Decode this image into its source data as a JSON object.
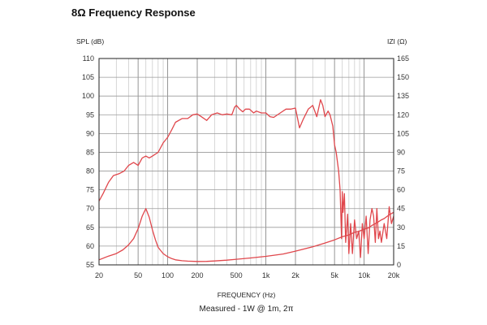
{
  "chart_data": {
    "type": "line",
    "title": "8Ω Frequency Response",
    "xlabel": "FREQUENCY (Hz)",
    "ylabel": "SPL (dB)",
    "y2label": "IZI (Ω)",
    "subtitle": "Measured - 1W @ 1m, 2π",
    "x_scale": "log",
    "xlim": [
      20,
      20000
    ],
    "ylim": [
      55,
      110
    ],
    "y2lim": [
      0,
      165
    ],
    "x_ticks": [
      20,
      50,
      100,
      200,
      500,
      1000,
      2000,
      5000,
      10000,
      20000
    ],
    "x_tick_labels": [
      "20",
      "50",
      "100",
      "200",
      "500",
      "1k",
      "2k",
      "5k",
      "10k",
      "20k"
    ],
    "y_ticks": [
      "110",
      "105",
      "100",
      "95",
      "90",
      "85",
      "80",
      "75",
      "70",
      "65",
      "60",
      "55"
    ],
    "y2_ticks": [
      "165",
      "150",
      "135",
      "120",
      "105",
      "90",
      "75",
      "60",
      "45",
      "30",
      "15",
      "0"
    ],
    "grid": true,
    "line_color": "#e0474c",
    "series": [
      {
        "axis": "left",
        "x": [
          20,
          22,
          25,
          28,
          32,
          36,
          40,
          45,
          50,
          55,
          60,
          65,
          70,
          80,
          90,
          100,
          110,
          120,
          140,
          160,
          180,
          200,
          220,
          250,
          280,
          320,
          360,
          400,
          450,
          480,
          500,
          540,
          580,
          620,
          680,
          750,
          800,
          900,
          1000,
          1100,
          1200,
          1400,
          1600,
          1800,
          2000,
          2200,
          2400,
          2700,
          3000,
          3300,
          3600,
          3800,
          4000,
          4300,
          4500,
          4800,
          5000,
          5200,
          5500,
          5700,
          5900,
          6000,
          6100,
          6300,
          6500,
          6800,
          7000,
          7300,
          7600,
          8000,
          8400,
          8800,
          9200,
          9600,
          10000,
          10500,
          11000,
          11500,
          12000,
          12500,
          13000,
          13500,
          14000,
          14500,
          15000,
          16000,
          17000,
          18000,
          19000,
          20000
        ],
        "values": [
          72,
          74,
          77,
          78.8,
          79.3,
          80,
          81.5,
          82.3,
          81.5,
          83.5,
          84,
          83.5,
          84,
          85,
          87.5,
          89,
          91,
          93,
          94,
          94,
          95,
          95.2,
          94.5,
          93.5,
          95,
          95.5,
          95,
          95.2,
          95,
          97,
          97.5,
          96.5,
          95.8,
          96.5,
          96.5,
          95.5,
          96,
          95.5,
          95.5,
          94.5,
          94.3,
          95.5,
          96.5,
          96.5,
          96.8,
          91.5,
          93.8,
          96.5,
          97.5,
          94.5,
          99,
          97.5,
          94.5,
          96,
          95,
          92,
          87,
          85,
          80,
          75,
          62,
          74.5,
          69,
          74,
          61,
          68.5,
          58,
          66,
          58,
          67,
          62,
          64,
          57,
          66,
          62,
          68,
          58,
          67,
          70,
          68,
          61,
          70,
          62,
          64,
          61,
          66,
          62,
          70.5,
          66,
          68
        ]
      },
      {
        "axis": "right",
        "x": [
          20,
          25,
          30,
          35,
          40,
          45,
          50,
          55,
          60,
          65,
          70,
          75,
          80,
          90,
          100,
          110,
          120,
          140,
          160,
          200,
          250,
          300,
          400,
          500,
          700,
          1000,
          1500,
          2000,
          3000,
          4000,
          5000,
          6000,
          7000,
          8000,
          9000,
          10000,
          11000,
          12000,
          13000,
          14000,
          15000,
          16000,
          18000,
          20000
        ],
        "values": [
          4,
          7,
          9,
          12,
          16,
          21,
          29,
          39,
          45,
          38,
          28,
          20,
          14,
          9,
          6.5,
          5,
          4,
          3.3,
          3,
          2.7,
          2.8,
          3.1,
          3.8,
          4.5,
          5.5,
          6.8,
          8.7,
          11,
          14.5,
          17.5,
          20,
          22.5,
          24,
          26,
          27,
          28.5,
          29.5,
          31.5,
          33,
          34.5,
          36,
          37,
          40,
          42
        ]
      }
    ]
  }
}
